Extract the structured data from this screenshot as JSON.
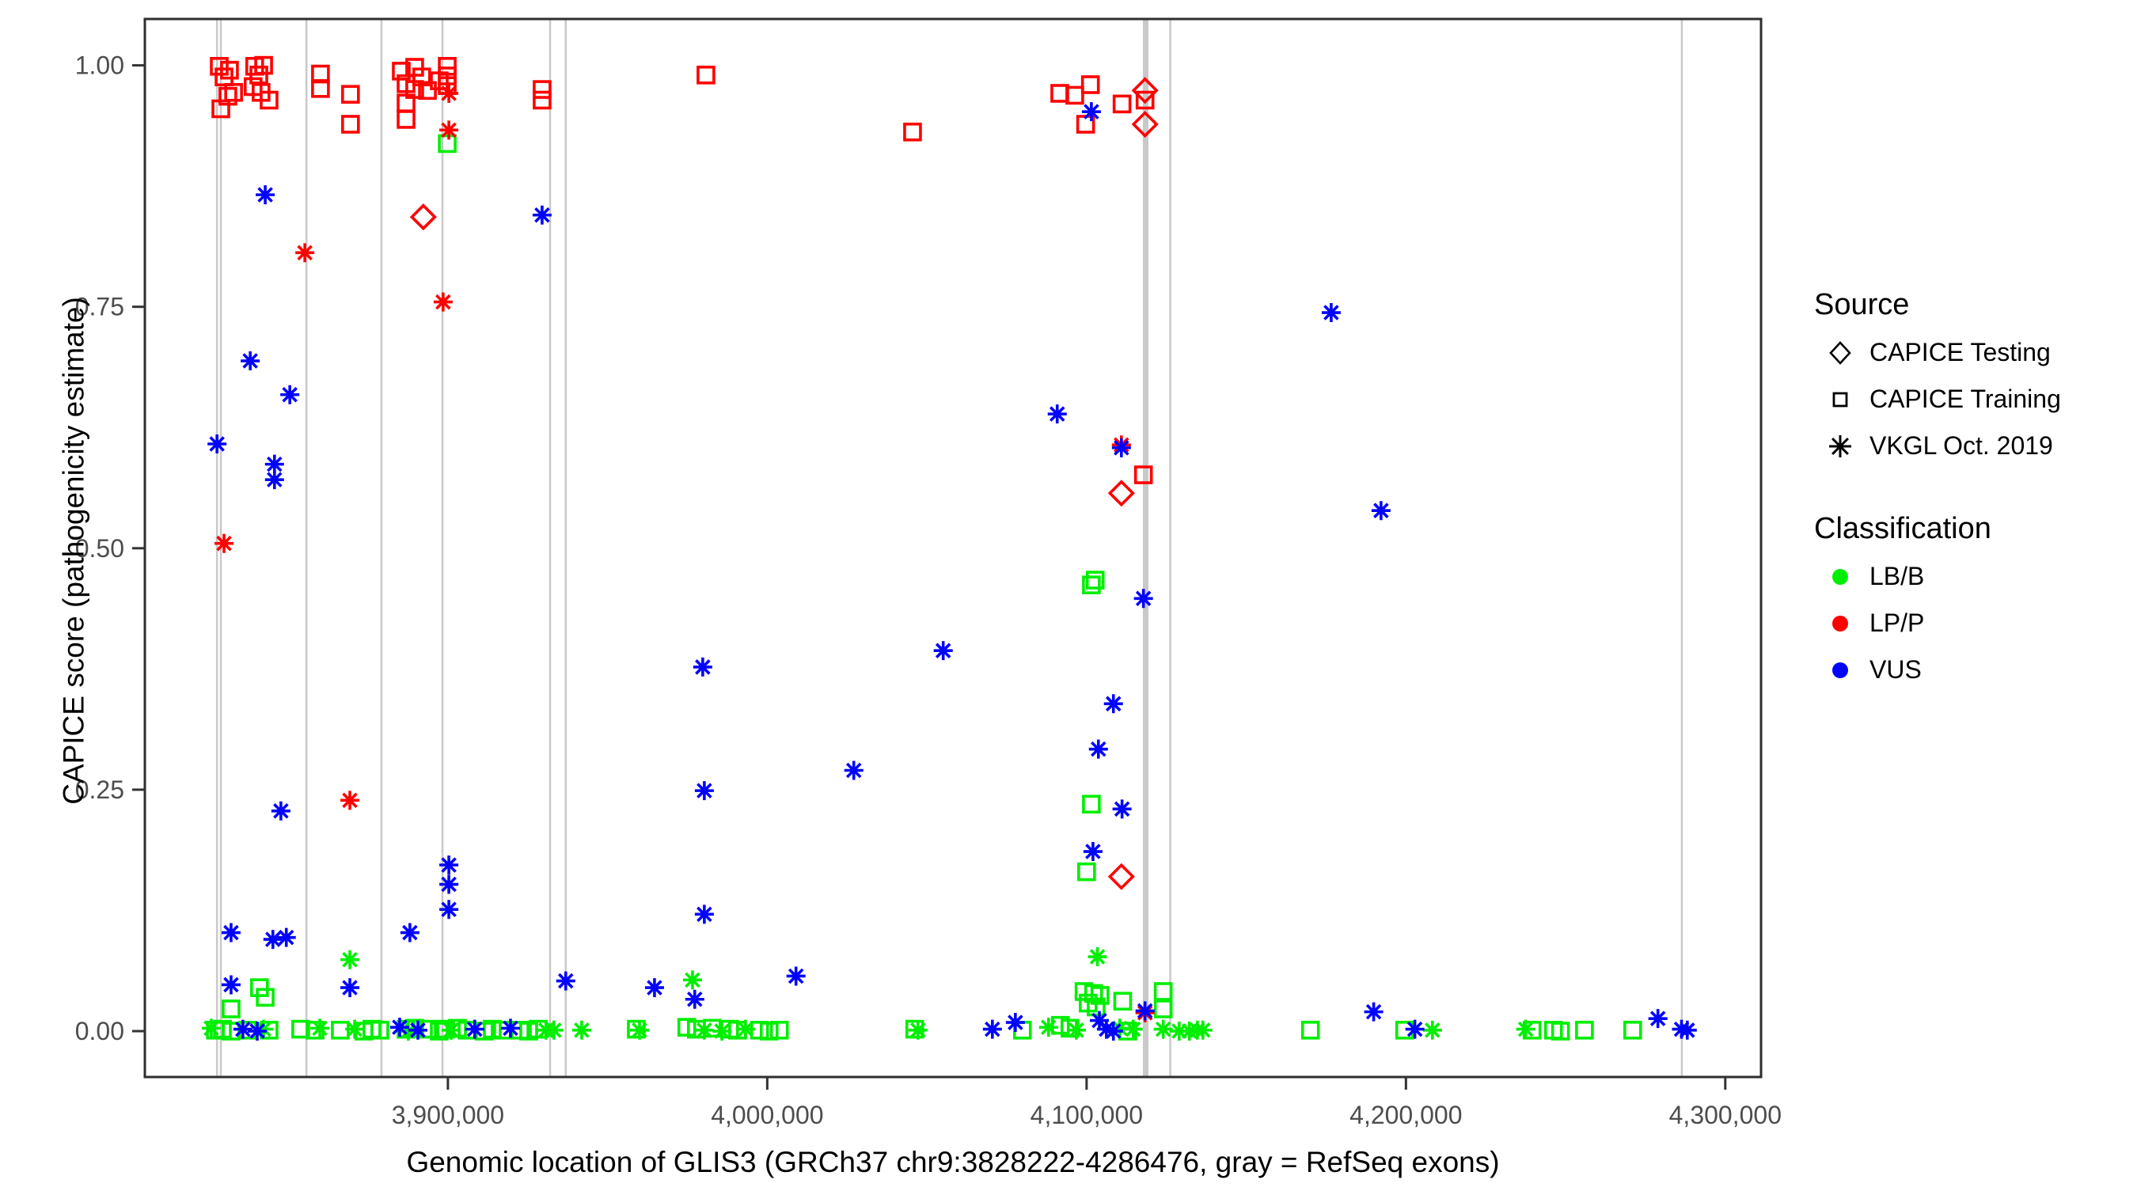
{
  "figure": {
    "background": "#ffffff",
    "panel_border_color": "#2e2e2e",
    "exon_line_color": "#c9c9c9",
    "tick_color": "#333333",
    "tick_label_color": "#4d4d4d"
  },
  "x_axis": {
    "title": "Genomic location of GLIS3 (GRCh37 chr9:3828222-4286476, gray = RefSeq exons)",
    "tick_values": [
      3900000,
      4000000,
      4100000,
      4200000,
      4300000
    ],
    "tick_labels": [
      "3,900,000",
      "4,000,000",
      "4,100,000",
      "4,200,000",
      "4,300,000"
    ],
    "range": [
      3805100,
      4311200
    ]
  },
  "y_axis": {
    "title": "CAPICE score (pathogenicity estimate)",
    "tick_values": [
      0.0,
      0.25,
      0.5,
      0.75,
      1.0
    ],
    "tick_labels": [
      "0.00",
      "0.25",
      "0.50",
      "0.75",
      "1.00"
    ],
    "range": [
      -0.0475,
      1.048
    ]
  },
  "legend": {
    "source": {
      "title": "Source",
      "items": [
        {
          "label": "CAPICE Testing",
          "shape": "diamond"
        },
        {
          "label": "CAPICE Training",
          "shape": "square"
        },
        {
          "label": "VKGL Oct. 2019",
          "shape": "asterisk"
        }
      ]
    },
    "classification": {
      "title": "Classification",
      "items": [
        {
          "label": "LB/B",
          "color": "#00ee00"
        },
        {
          "label": "LP/P",
          "color": "#ff0000"
        },
        {
          "label": "VUS",
          "color": "#0000ff"
        }
      ]
    }
  },
  "chart_data": {
    "type": "scatter",
    "title": "",
    "xlabel": "Genomic location of GLIS3 (GRCh37 chr9:3828222-4286476, gray = RefSeq exons)",
    "ylabel": "CAPICE score (pathogenicity estimate)",
    "xlim": [
      3805100,
      4311200
    ],
    "ylim": [
      -0.0475,
      1.048
    ],
    "grid": false,
    "legend_position": "right",
    "source_shape_map": {
      "T": "CAPICE Testing = open diamond",
      "R": "CAPICE Training = open square",
      "V": "VKGL Oct. 2019 = asterisk"
    },
    "class_color_map": {
      "B": "#00ee00",
      "P": "#ff0000",
      "U": "#0000ff"
    },
    "refseq_exon_lines": [
      {
        "bp": 3827700,
        "w": 2.5
      },
      {
        "bp": 3828900,
        "w": 2.5
      },
      {
        "bp": 3855700,
        "w": 2.5
      },
      {
        "bp": 3879200,
        "w": 2.5
      },
      {
        "bp": 3898300,
        "w": 2.5
      },
      {
        "bp": 3932000,
        "w": 2.5
      },
      {
        "bp": 3936900,
        "w": 2.5
      },
      {
        "bp": 4118500,
        "w": 7
      },
      {
        "bp": 4126200,
        "w": 2.5
      },
      {
        "bp": 4286400,
        "w": 2.5
      }
    ],
    "points": [
      [
        3828400,
        0.999,
        "R",
        "P"
      ],
      [
        3831600,
        0.995,
        "R",
        "P"
      ],
      [
        3829900,
        0.988,
        "R",
        "P"
      ],
      [
        3832900,
        0.972,
        "R",
        "P"
      ],
      [
        3831100,
        0.968,
        "R",
        "P"
      ],
      [
        3828900,
        0.955,
        "R",
        "P"
      ],
      [
        3839500,
        0.999,
        "R",
        "P"
      ],
      [
        3842300,
        1.0,
        "R",
        "P"
      ],
      [
        3840800,
        0.99,
        "R",
        "P"
      ],
      [
        3839000,
        0.978,
        "R",
        "P"
      ],
      [
        3841500,
        0.972,
        "R",
        "P"
      ],
      [
        3844000,
        0.964,
        "R",
        "P"
      ],
      [
        3860100,
        0.991,
        "R",
        "P"
      ],
      [
        3860100,
        0.976,
        "R",
        "P"
      ],
      [
        3869500,
        0.97,
        "R",
        "P"
      ],
      [
        3869500,
        0.939,
        "R",
        "P"
      ],
      [
        3885400,
        0.994,
        "R",
        "P"
      ],
      [
        3889600,
        0.998,
        "R",
        "P"
      ],
      [
        3891800,
        0.988,
        "R",
        "P"
      ],
      [
        3886900,
        0.981,
        "R",
        "P"
      ],
      [
        3889600,
        0.975,
        "R",
        "P"
      ],
      [
        3893600,
        0.974,
        "R",
        "P"
      ],
      [
        3897300,
        0.984,
        "R",
        "P"
      ],
      [
        3899800,
        0.999,
        "R",
        "P"
      ],
      [
        3899800,
        0.989,
        "R",
        "P"
      ],
      [
        3899800,
        0.979,
        "R",
        "P"
      ],
      [
        3886900,
        0.961,
        "R",
        "P"
      ],
      [
        3886900,
        0.944,
        "R",
        "P"
      ],
      [
        3929500,
        0.975,
        "R",
        "P"
      ],
      [
        3929500,
        0.964,
        "R",
        "P"
      ],
      [
        3980800,
        0.99,
        "R",
        "P"
      ],
      [
        4045500,
        0.931,
        "R",
        "P"
      ],
      [
        4091600,
        0.971,
        "R",
        "P"
      ],
      [
        4096300,
        0.969,
        "R",
        "P"
      ],
      [
        4101200,
        0.98,
        "R",
        "P"
      ],
      [
        4099700,
        0.939,
        "R",
        "P"
      ],
      [
        4111100,
        0.96,
        "R",
        "P"
      ],
      [
        4118300,
        0.964,
        "R",
        "P"
      ],
      [
        4117800,
        0.576,
        "R",
        "P"
      ],
      [
        3892300,
        0.843,
        "T",
        "P"
      ],
      [
        4118300,
        0.974,
        "T",
        "P"
      ],
      [
        4118300,
        0.939,
        "T",
        "P"
      ],
      [
        4110900,
        0.557,
        "T",
        "P"
      ],
      [
        4110900,
        0.16,
        "T",
        "P"
      ],
      [
        3900300,
        0.971,
        "V",
        "P"
      ],
      [
        3900300,
        0.933,
        "V",
        "P"
      ],
      [
        3898500,
        0.755,
        "V",
        "P"
      ],
      [
        3855200,
        0.806,
        "V",
        "P"
      ],
      [
        3829900,
        0.505,
        "V",
        "P"
      ],
      [
        3869300,
        0.239,
        "V",
        "P"
      ],
      [
        4110900,
        0.607,
        "V",
        "P"
      ],
      [
        4118300,
        0.019,
        "V",
        "P"
      ],
      [
        3899800,
        0.919,
        "R",
        "B"
      ],
      [
        4101500,
        0.462,
        "R",
        "B"
      ],
      [
        4102700,
        0.467,
        "R",
        "B"
      ],
      [
        4101500,
        0.235,
        "R",
        "B"
      ],
      [
        4100000,
        0.165,
        "R",
        "B"
      ],
      [
        3841000,
        0.045,
        "R",
        "B"
      ],
      [
        3842800,
        0.035,
        "R",
        "B"
      ],
      [
        3832100,
        0.023,
        "R",
        "B"
      ],
      [
        4099200,
        0.041,
        "R",
        "B"
      ],
      [
        4102200,
        0.039,
        "R",
        "B"
      ],
      [
        4104200,
        0.037,
        "R",
        "B"
      ],
      [
        4100500,
        0.029,
        "R",
        "B"
      ],
      [
        4103000,
        0.025,
        "R",
        "B"
      ],
      [
        4111300,
        0.031,
        "R",
        "B"
      ],
      [
        4124000,
        0.041,
        "R",
        "B"
      ],
      [
        4124000,
        0.023,
        "R",
        "B"
      ],
      [
        3869300,
        0.074,
        "V",
        "B"
      ],
      [
        4103400,
        0.077,
        "V",
        "B"
      ],
      [
        3976600,
        0.053,
        "V",
        "B"
      ],
      [
        3842800,
        0.866,
        "V",
        "U"
      ],
      [
        3838100,
        0.694,
        "V",
        "U"
      ],
      [
        3850500,
        0.659,
        "V",
        "U"
      ],
      [
        3827700,
        0.608,
        "V",
        "U"
      ],
      [
        3845700,
        0.587,
        "V",
        "U"
      ],
      [
        3845700,
        0.571,
        "V",
        "U"
      ],
      [
        3929500,
        0.845,
        "V",
        "U"
      ],
      [
        3847700,
        0.228,
        "V",
        "U"
      ],
      [
        3832100,
        0.102,
        "V",
        "U"
      ],
      [
        3845200,
        0.095,
        "V",
        "U"
      ],
      [
        3849400,
        0.097,
        "V",
        "U"
      ],
      [
        3888100,
        0.102,
        "V",
        "U"
      ],
      [
        3900300,
        0.172,
        "V",
        "U"
      ],
      [
        3900300,
        0.152,
        "V",
        "U"
      ],
      [
        3900300,
        0.126,
        "V",
        "U"
      ],
      [
        3832100,
        0.048,
        "V",
        "U"
      ],
      [
        3869300,
        0.045,
        "V",
        "U"
      ],
      [
        3979800,
        0.377,
        "V",
        "U"
      ],
      [
        3980300,
        0.249,
        "V",
        "U"
      ],
      [
        3980300,
        0.121,
        "V",
        "U"
      ],
      [
        4009000,
        0.057,
        "V",
        "U"
      ],
      [
        4027100,
        0.27,
        "V",
        "U"
      ],
      [
        4055100,
        0.394,
        "V",
        "U"
      ],
      [
        4090800,
        0.639,
        "V",
        "U"
      ],
      [
        4101500,
        0.952,
        "V",
        "U"
      ],
      [
        4110900,
        0.604,
        "V",
        "U"
      ],
      [
        4108400,
        0.339,
        "V",
        "U"
      ],
      [
        4103700,
        0.292,
        "V",
        "U"
      ],
      [
        4117800,
        0.448,
        "V",
        "U"
      ],
      [
        4102000,
        0.186,
        "V",
        "U"
      ],
      [
        4111100,
        0.23,
        "V",
        "U"
      ],
      [
        4104000,
        0.011,
        "V",
        "U"
      ],
      [
        4176600,
        0.744,
        "V",
        "U"
      ],
      [
        4192200,
        0.539,
        "V",
        "U"
      ],
      [
        3936900,
        0.052,
        "V",
        "U"
      ],
      [
        3964700,
        0.045,
        "V",
        "U"
      ],
      [
        3977300,
        0.033,
        "V",
        "U"
      ],
      [
        4077700,
        0.009,
        "V",
        "U"
      ],
      [
        4189900,
        0.02,
        "V",
        "U"
      ],
      [
        4278900,
        0.013,
        "V",
        "U"
      ],
      [
        4118300,
        0.021,
        "V",
        "U"
      ],
      [
        3825900,
        0.003,
        "V",
        "B"
      ],
      [
        3827200,
        0.001,
        "R",
        "B"
      ],
      [
        3829400,
        0.002,
        "R",
        "B"
      ],
      [
        3832100,
        0.0,
        "R",
        "B"
      ],
      [
        3835800,
        0.002,
        "V",
        "U"
      ],
      [
        3837300,
        0.001,
        "R",
        "B"
      ],
      [
        3840300,
        0.0,
        "V",
        "U"
      ],
      [
        3842300,
        0.002,
        "V",
        "B"
      ],
      [
        3844000,
        0.001,
        "R",
        "B"
      ],
      [
        3853900,
        0.002,
        "R",
        "B"
      ],
      [
        3858400,
        0.001,
        "R",
        "B"
      ],
      [
        3859900,
        0.003,
        "V",
        "B"
      ],
      [
        3866300,
        0.001,
        "R",
        "B"
      ],
      [
        3870800,
        0.002,
        "V",
        "B"
      ],
      [
        3873700,
        0.0,
        "R",
        "B"
      ],
      [
        3876200,
        0.002,
        "R",
        "B"
      ],
      [
        3878700,
        0.001,
        "R",
        "B"
      ],
      [
        3884900,
        0.004,
        "V",
        "U"
      ],
      [
        3886900,
        0.002,
        "R",
        "B"
      ],
      [
        3887600,
        0.0,
        "V",
        "B"
      ],
      [
        3889600,
        0.003,
        "R",
        "B"
      ],
      [
        3890600,
        0.001,
        "V",
        "U"
      ],
      [
        3893600,
        0.002,
        "R",
        "B"
      ],
      [
        3897300,
        0.0,
        "R",
        "B"
      ],
      [
        3899300,
        0.002,
        "R",
        "B"
      ],
      [
        3901000,
        0.001,
        "V",
        "B"
      ],
      [
        3903000,
        0.003,
        "R",
        "B"
      ],
      [
        3906000,
        0.001,
        "R",
        "B"
      ],
      [
        3908400,
        0.002,
        "V",
        "U"
      ],
      [
        3911400,
        0.0,
        "R",
        "B"
      ],
      [
        3913900,
        0.002,
        "R",
        "B"
      ],
      [
        3917100,
        0.001,
        "R",
        "B"
      ],
      [
        3919600,
        0.003,
        "V",
        "U"
      ],
      [
        3922600,
        0.001,
        "R",
        "B"
      ],
      [
        3925300,
        0.0,
        "R",
        "B"
      ],
      [
        3928300,
        0.002,
        "R",
        "B"
      ],
      [
        3930700,
        0.001,
        "V",
        "B"
      ],
      [
        3933200,
        0.001,
        "V",
        "B"
      ],
      [
        3941900,
        0.001,
        "V",
        "B"
      ],
      [
        3959000,
        0.002,
        "R",
        "B"
      ],
      [
        3960000,
        0.001,
        "V",
        "B"
      ],
      [
        3974800,
        0.004,
        "R",
        "B"
      ],
      [
        3977800,
        0.002,
        "R",
        "B"
      ],
      [
        3980300,
        0.001,
        "V",
        "B"
      ],
      [
        3982800,
        0.003,
        "R",
        "B"
      ],
      [
        3985800,
        0.0,
        "V",
        "B"
      ],
      [
        3988200,
        0.002,
        "R",
        "B"
      ],
      [
        3990700,
        0.001,
        "R",
        "B"
      ],
      [
        3993200,
        0.002,
        "V",
        "B"
      ],
      [
        3997600,
        0.001,
        "R",
        "B"
      ],
      [
        4000600,
        0.0,
        "R",
        "B"
      ],
      [
        4003800,
        0.001,
        "R",
        "B"
      ],
      [
        4046200,
        0.002,
        "R",
        "B"
      ],
      [
        4047200,
        0.001,
        "V",
        "B"
      ],
      [
        4070500,
        0.002,
        "V",
        "U"
      ],
      [
        4079900,
        0.001,
        "R",
        "B"
      ],
      [
        4088100,
        0.004,
        "V",
        "B"
      ],
      [
        4091800,
        0.006,
        "R",
        "B"
      ],
      [
        4094800,
        0.003,
        "R",
        "B"
      ],
      [
        4096800,
        0.001,
        "V",
        "B"
      ],
      [
        4106200,
        0.002,
        "V",
        "U"
      ],
      [
        4108400,
        0.0,
        "V",
        "U"
      ],
      [
        4110400,
        0.003,
        "V",
        "B"
      ],
      [
        4112900,
        0.0,
        "R",
        "B"
      ],
      [
        4114600,
        0.002,
        "V",
        "B"
      ],
      [
        4124000,
        0.002,
        "V",
        "B"
      ],
      [
        4129000,
        0.0,
        "V",
        "B"
      ],
      [
        4132200,
        0.0,
        "V",
        "B"
      ],
      [
        4134700,
        0.001,
        "V",
        "B"
      ],
      [
        4136400,
        0.001,
        "V",
        "B"
      ],
      [
        4170100,
        0.001,
        "R",
        "B"
      ],
      [
        4199600,
        0.001,
        "R",
        "B"
      ],
      [
        4202800,
        0.002,
        "V",
        "U"
      ],
      [
        4208300,
        0.001,
        "V",
        "B"
      ],
      [
        4237500,
        0.002,
        "V",
        "B"
      ],
      [
        4239500,
        0.001,
        "R",
        "B"
      ],
      [
        4246200,
        0.001,
        "R",
        "B"
      ],
      [
        4248400,
        0.0,
        "R",
        "B"
      ],
      [
        4255900,
        0.001,
        "R",
        "B"
      ],
      [
        4271000,
        0.001,
        "R",
        "B"
      ],
      [
        4286300,
        0.002,
        "V",
        "U"
      ],
      [
        4288100,
        0.001,
        "V",
        "U"
      ]
    ]
  }
}
